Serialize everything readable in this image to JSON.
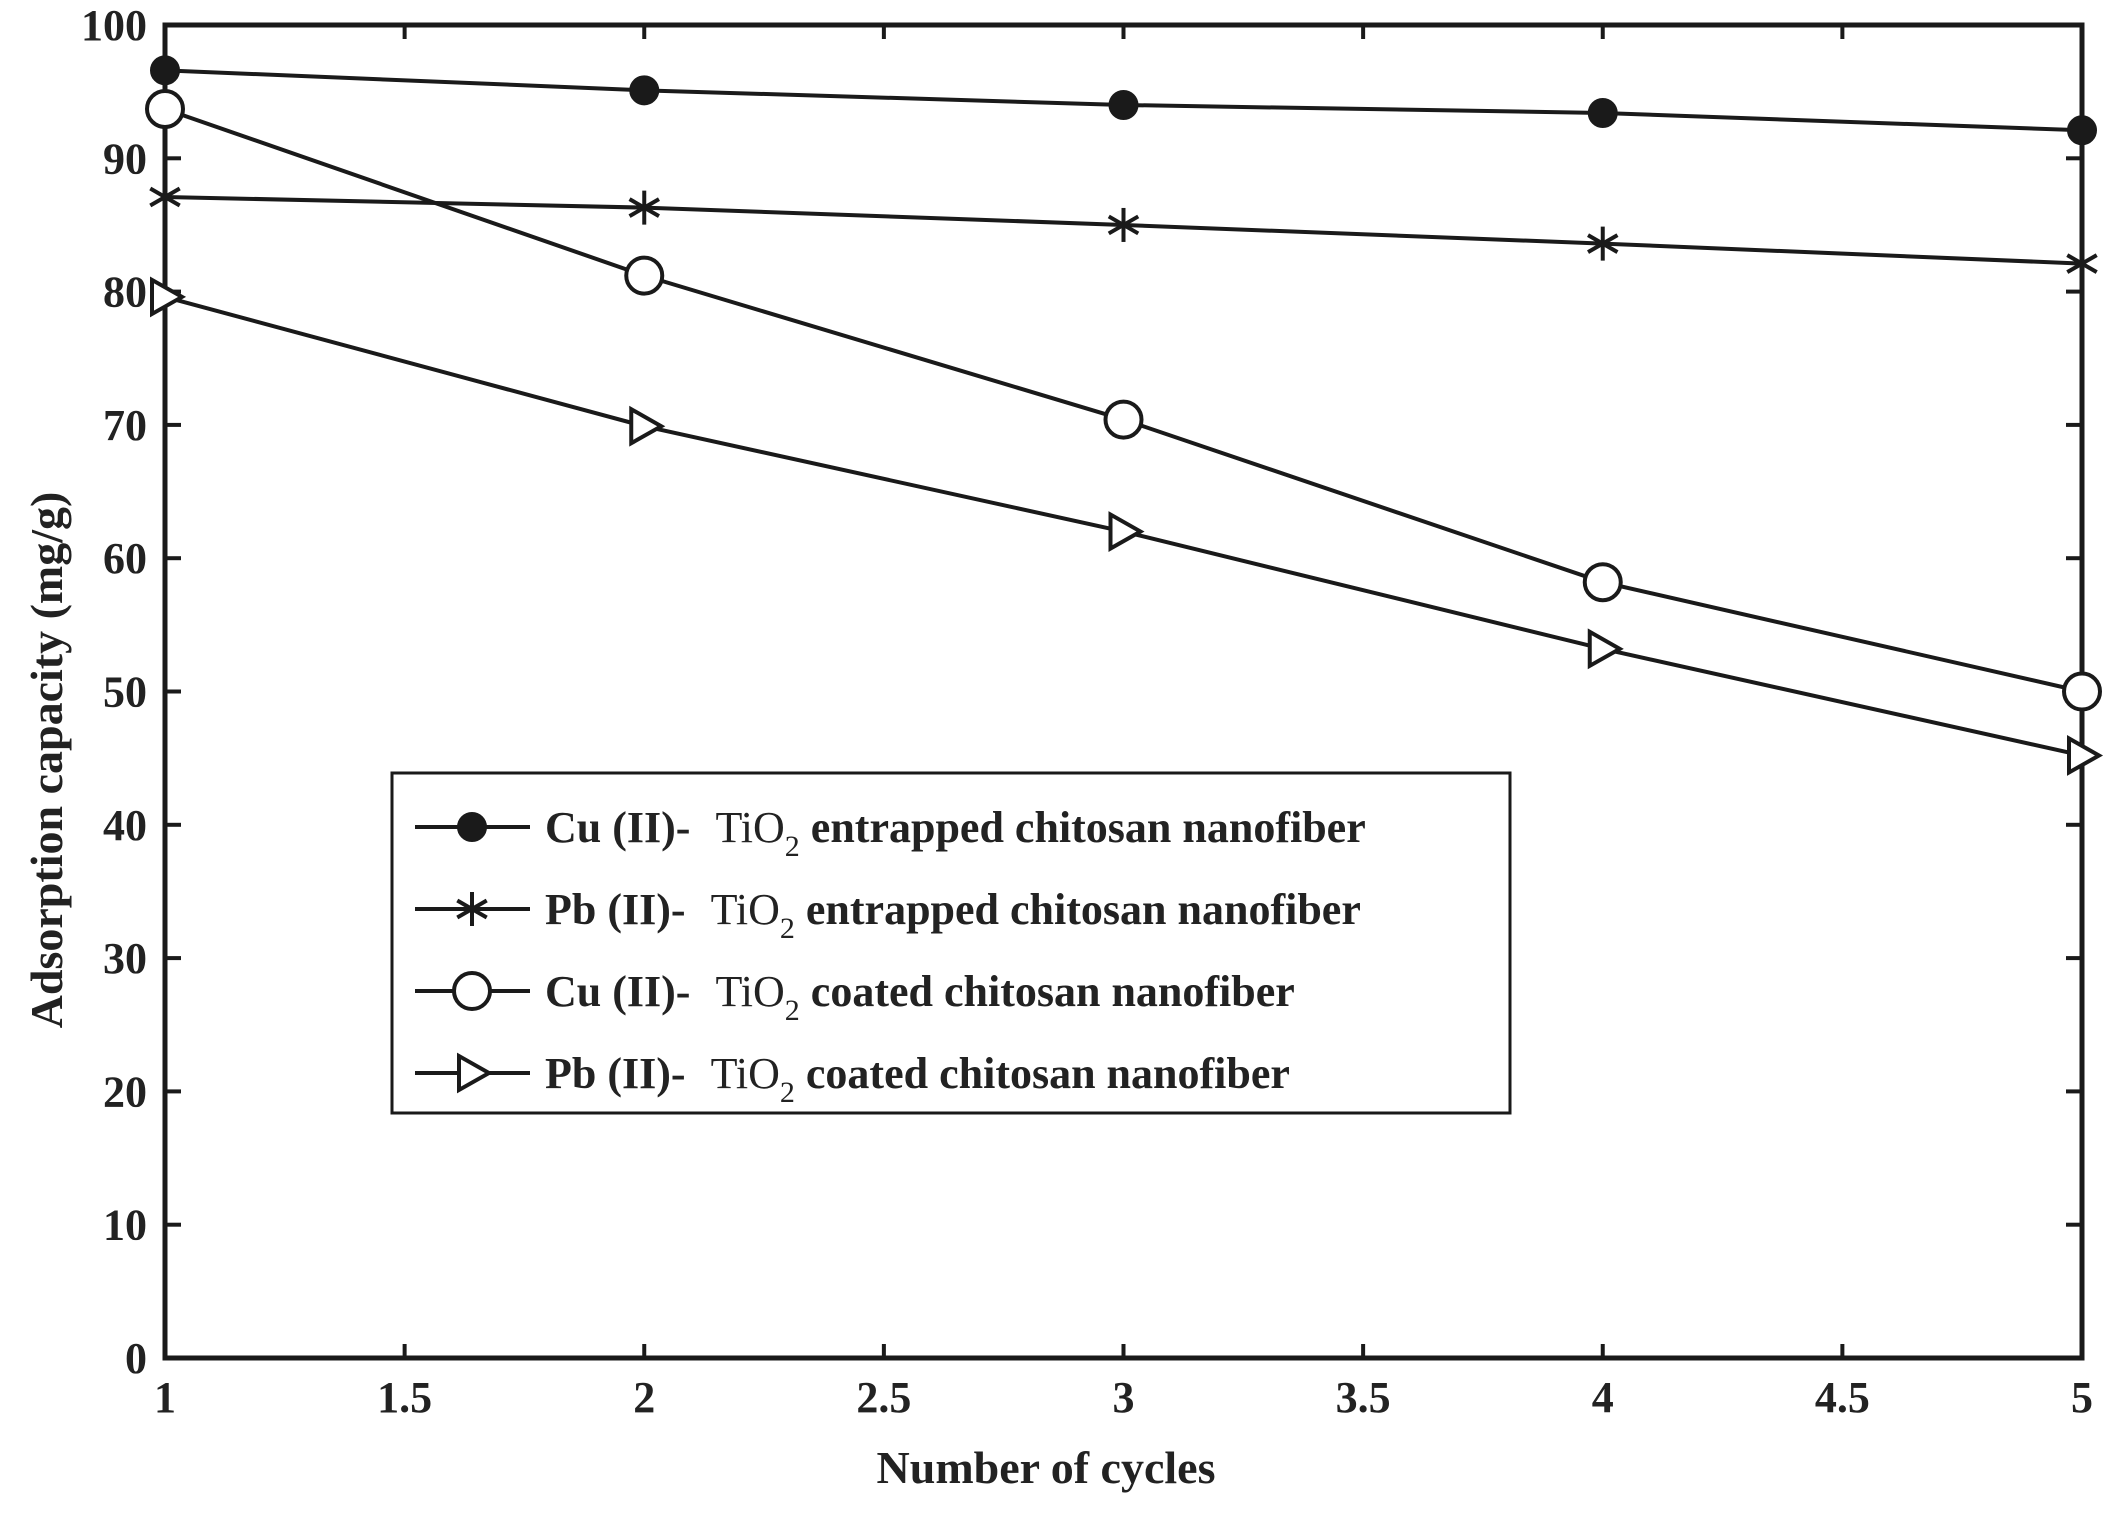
{
  "chart_data": {
    "type": "line",
    "title": "",
    "xlabel": "Number of cycles",
    "ylabel": "Adsorption capacity (mg/g)",
    "xlim": [
      1,
      5
    ],
    "ylim": [
      0,
      100
    ],
    "xticks": [
      "1",
      "1.5",
      "2",
      "2.5",
      "3",
      "3.5",
      "4",
      "4.5",
      "5"
    ],
    "yticks": [
      "0",
      "10",
      "20",
      "30",
      "40",
      "50",
      "60",
      "70",
      "80",
      "90",
      "100"
    ],
    "grid": false,
    "legend_position": "center-left",
    "x": [
      1,
      2,
      3,
      4,
      5
    ],
    "series": [
      {
        "name": "Cu (II)- TiO2 entrapped chitosan nanofiber",
        "label_prefix": "Cu (II)-",
        "label_chem": "TiO",
        "label_sub": "2",
        "label_rest": "entrapped chitosan nanofiber",
        "marker": "filled-circle",
        "values": [
          96.6,
          95.1,
          94.0,
          93.4,
          92.1
        ]
      },
      {
        "name": "Pb (II)- TiO2 entrapped chitosan nanofiber",
        "label_prefix": "Pb (II)-",
        "label_chem": "TiO",
        "label_sub": "2",
        "label_rest": "entrapped chitosan nanofiber",
        "marker": "asterisk",
        "values": [
          87.1,
          86.3,
          85.0,
          83.6,
          82.1
        ]
      },
      {
        "name": "Cu (II)- TiO2 coated chitosan nanofiber",
        "label_prefix": "Cu (II)-",
        "label_chem": "TiO",
        "label_sub": "2",
        "label_rest": "coated chitosan nanofiber",
        "marker": "open-circle",
        "values": [
          93.7,
          81.2,
          70.4,
          58.2,
          50.0
        ]
      },
      {
        "name": "Pb (II)- TiO2 coated chitosan nanofiber",
        "label_prefix": "Pb (II)-",
        "label_chem": "TiO",
        "label_sub": "2",
        "label_rest": "coated chitosan nanofiber",
        "marker": "open-triangle-right",
        "values": [
          79.6,
          69.9,
          62.0,
          53.2,
          45.2
        ]
      }
    ]
  },
  "colors": {
    "line": "#1a1a1a",
    "text": "#222222",
    "background": "#ffffff"
  }
}
